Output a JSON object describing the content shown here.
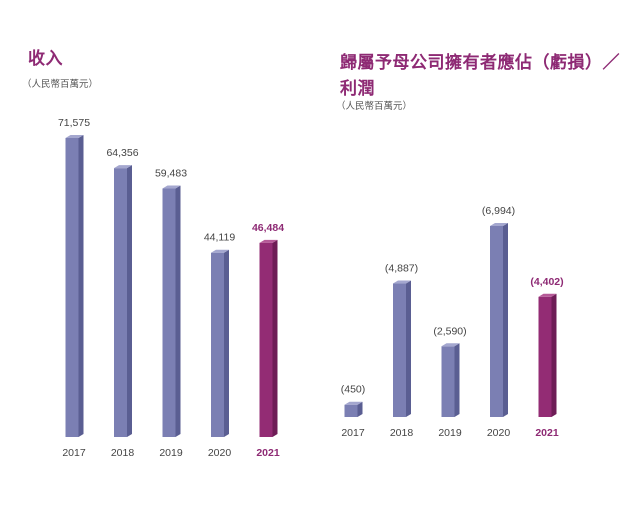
{
  "colors": {
    "bar_front": "#7b7fb3",
    "bar_side": "#5a5e92",
    "bar_top": "#a4a7cf",
    "hl_front": "#932c74",
    "hl_side": "#6e1d56",
    "hl_top": "#b65a98",
    "accent": "#8e2a74"
  },
  "chart_data": [
    {
      "type": "bar",
      "title": "收入",
      "subtitle": "（人民幣百萬元）",
      "categories": [
        "2017",
        "2018",
        "2019",
        "2020",
        "2021"
      ],
      "values": [
        71575,
        64356,
        59483,
        44119,
        46484
      ],
      "labels": [
        "71,575",
        "64,356",
        "59,483",
        "44,119",
        "46,484"
      ],
      "highlight": "2021",
      "ylim": [
        0,
        71575
      ],
      "grid": false
    },
    {
      "type": "bar",
      "title_line1": "歸屬予母公司擁有者應佔（虧損）／",
      "title_line2": "利潤",
      "subtitle": "（人民幣百萬元）",
      "categories": [
        "2017",
        "2018",
        "2019",
        "2020",
        "2021"
      ],
      "values": [
        -450,
        -4887,
        -2590,
        -6994,
        -4402
      ],
      "labels": [
        "(450)",
        "(4,887)",
        "(2,590)",
        "(6,994)",
        "(4,402)"
      ],
      "highlight": "2021",
      "ylim": [
        0,
        6994
      ],
      "grid": false
    }
  ]
}
